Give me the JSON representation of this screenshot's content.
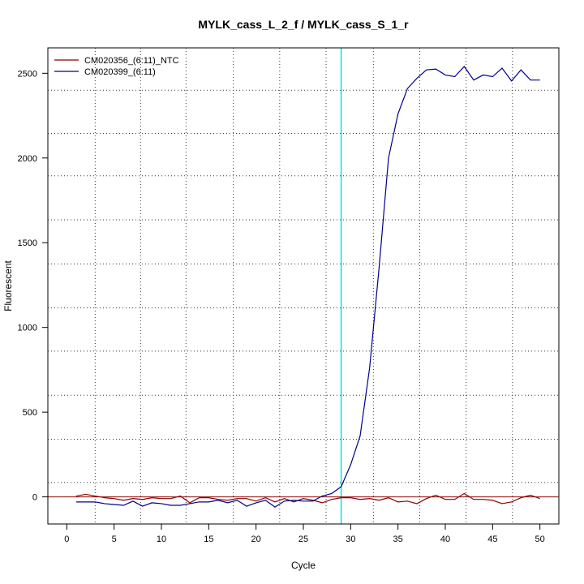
{
  "chart_data": {
    "type": "line",
    "title": "MYLK_cass_L_2_f / MYLK_cass_S_1_r",
    "xlabel": "Cycle",
    "ylabel": "Fluorescent",
    "xlim": [
      -2,
      52
    ],
    "ylim": [
      -160,
      2650
    ],
    "x_ticks": [
      0,
      5,
      10,
      15,
      20,
      25,
      30,
      35,
      40,
      45,
      50
    ],
    "y_ticks": [
      0,
      500,
      1000,
      1500,
      2000,
      2500
    ],
    "grid": true,
    "grid_x_minor": [
      3,
      7.8,
      12.6,
      17.6,
      22.5,
      27.4,
      32.4,
      37.3,
      42.2,
      47.1
    ],
    "grid_y_minor": [
      85,
      340,
      600,
      860,
      1115,
      1375,
      1635,
      1895,
      2145,
      2400
    ],
    "legend_position": "top-left",
    "threshold": {
      "x": 29,
      "color": "#00e5ee"
    },
    "baseline": {
      "y": 0,
      "color": "#8b0000"
    },
    "x": [
      1,
      2,
      3,
      4,
      5,
      6,
      7,
      8,
      9,
      10,
      11,
      12,
      13,
      14,
      15,
      16,
      17,
      18,
      19,
      20,
      21,
      22,
      23,
      24,
      25,
      26,
      27,
      28,
      29,
      30,
      31,
      32,
      33,
      34,
      35,
      36,
      37,
      38,
      39,
      40,
      41,
      42,
      43,
      44,
      45,
      46,
      47,
      48,
      49,
      50
    ],
    "series": [
      {
        "name": "CM020356_(6:11)_NTC",
        "color": "#8b0000",
        "values": [
          5,
          15,
          5,
          -5,
          -10,
          -20,
          -10,
          -15,
          -5,
          -10,
          -10,
          5,
          -35,
          -5,
          -5,
          -15,
          -20,
          -10,
          -10,
          -25,
          -5,
          -30,
          -10,
          -30,
          -10,
          -20,
          -35,
          -15,
          -5,
          -5,
          -15,
          -10,
          -20,
          -5,
          -30,
          -25,
          -40,
          -10,
          10,
          -15,
          -15,
          20,
          -15,
          -15,
          -20,
          -40,
          -30,
          -5,
          10,
          -10
        ]
      },
      {
        "name": "CM020399_(6:11)",
        "color": "#00008b",
        "values": [
          -30,
          -30,
          -30,
          -40,
          -45,
          -50,
          -25,
          -55,
          -35,
          -40,
          -50,
          -50,
          -40,
          -30,
          -30,
          -20,
          -35,
          -20,
          -55,
          -35,
          -20,
          -60,
          -25,
          -20,
          -25,
          -25,
          5,
          20,
          60,
          190,
          360,
          760,
          1350,
          2000,
          2260,
          2410,
          2470,
          2520,
          2525,
          2490,
          2480,
          2540,
          2460,
          2490,
          2480,
          2530,
          2455,
          2520,
          2460,
          2460
        ]
      }
    ]
  }
}
